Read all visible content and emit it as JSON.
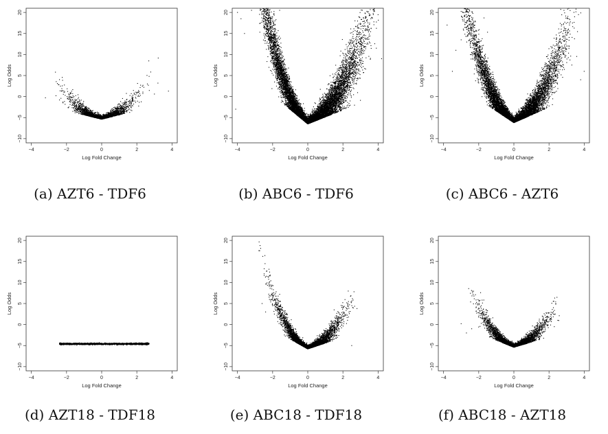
{
  "chart_data": [
    {
      "type": "scatter",
      "caption": "(a) AZT6 - TDF6",
      "xlabel": "Log Fold Change",
      "ylabel": "Log Odds",
      "xlim": [
        -4.3,
        4.3
      ],
      "ylim": [
        -11,
        21
      ],
      "xticks": [
        -4,
        -2,
        0,
        2,
        4
      ],
      "yticks": [
        -10,
        -5,
        0,
        5,
        10,
        15,
        20
      ],
      "grid": false,
      "legend": "none",
      "point_color": "#000000",
      "shape": {
        "base": -5.4,
        "slope": 1.85,
        "spread_x": 0.85,
        "max_x": 3.8,
        "scatter_y": 0.9,
        "n": 2600,
        "outliers": [
          [
            -3.2,
            -0.3
          ],
          [
            -2.6,
            0.2
          ],
          [
            -2.4,
            -0.8
          ],
          [
            2.6,
            3.0
          ],
          [
            2.7,
            4.8
          ],
          [
            3.2,
            3.2
          ],
          [
            3.8,
            1.3
          ],
          [
            2.4,
            2.2
          ],
          [
            -2.2,
            -1.5
          ],
          [
            3.0,
            0.6
          ]
        ]
      }
    },
    {
      "type": "scatter",
      "caption": "(b) ABC6 - TDF6",
      "xlabel": "Log Fold Change",
      "ylabel": "Log Odds",
      "xlim": [
        -4.3,
        4.3
      ],
      "ylim": [
        -11,
        21
      ],
      "xticks": [
        -4,
        -2,
        0,
        2,
        4
      ],
      "yticks": [
        -10,
        -5,
        0,
        5,
        10,
        15,
        20
      ],
      "grid": false,
      "legend": "none",
      "point_color": "#000000",
      "shape": {
        "base": -6.5,
        "slope_left": 6.2,
        "slope_right": 3.0,
        "spread_x": 1.5,
        "max_x": 4.3,
        "scatter_y": 2.0,
        "n": 12000,
        "outliers": [
          [
            -4.0,
            20.0
          ],
          [
            -3.8,
            18.5
          ],
          [
            -3.2,
            20.5
          ],
          [
            -2.7,
            20.8
          ],
          [
            -1.6,
            20.5
          ],
          [
            -4.1,
            -3.0
          ],
          [
            3.9,
            11.5
          ],
          [
            4.2,
            9.0
          ],
          [
            3.5,
            13.0
          ],
          [
            -3.6,
            15.0
          ]
        ]
      }
    },
    {
      "type": "scatter",
      "caption": "(c) ABC6 - AZT6",
      "xlabel": "Log Fold Change",
      "ylabel": "Log Odds",
      "xlim": [
        -4.3,
        4.3
      ],
      "ylim": [
        -11,
        21
      ],
      "xticks": [
        -4,
        -2,
        0,
        2,
        4
      ],
      "yticks": [
        -10,
        -5,
        0,
        5,
        10,
        15,
        20
      ],
      "grid": false,
      "legend": "none",
      "point_color": "#000000",
      "shape": {
        "base": -6.2,
        "slope_left": 5.0,
        "slope_right": 3.3,
        "spread_x": 1.3,
        "max_x": 4.1,
        "scatter_y": 1.8,
        "n": 9000,
        "outliers": [
          [
            -3.8,
            17.0
          ],
          [
            -1.7,
            18.7
          ],
          [
            -3.3,
            11.0
          ],
          [
            3.3,
            7.5
          ],
          [
            2.6,
            11.0
          ],
          [
            -3.0,
            13.5
          ],
          [
            -1.5,
            15.3
          ],
          [
            4.0,
            6.0
          ],
          [
            -3.5,
            6.0
          ],
          [
            3.8,
            4.0
          ]
        ]
      }
    },
    {
      "type": "scatter",
      "caption": "(d) AZT18 - TDF18",
      "xlabel": "Log Fold Change",
      "ylabel": "Log Odds",
      "xlim": [
        -4.3,
        4.3
      ],
      "ylim": [
        -11,
        21
      ],
      "xticks": [
        -4,
        -2,
        0,
        2,
        4
      ],
      "yticks": [
        -10,
        -5,
        0,
        5,
        10,
        15,
        20
      ],
      "grid": false,
      "legend": "none",
      "point_color": "#000000",
      "shape": {
        "flat": -4.6,
        "min_x": -2.4,
        "max_x": 2.7,
        "scatter_y": 0.1,
        "n": 1800,
        "outliers": []
      }
    },
    {
      "type": "scatter",
      "caption": "(e) ABC18 - TDF18",
      "xlabel": "Log Fold Change",
      "ylabel": "Log Odds",
      "xlim": [
        -4.3,
        4.3
      ],
      "ylim": [
        -11,
        21
      ],
      "xticks": [
        -4,
        -2,
        0,
        2,
        4
      ],
      "yticks": [
        -10,
        -5,
        0,
        5,
        10,
        15,
        20
      ],
      "grid": false,
      "legend": "none",
      "point_color": "#000000",
      "shape": {
        "base": -5.8,
        "slope_left": 4.2,
        "slope_right": 2.5,
        "spread_x": 0.9,
        "max_x": 2.8,
        "scatter_y": 1.0,
        "n": 4500,
        "outliers": [
          [
            -2.6,
            5.0
          ],
          [
            -2.2,
            6.5
          ],
          [
            -1.8,
            7.8
          ],
          [
            -1.6,
            7.2
          ],
          [
            -2.0,
            4.5
          ],
          [
            2.8,
            3.8
          ],
          [
            2.5,
            -5.0
          ],
          [
            -2.4,
            3.0
          ],
          [
            1.5,
            3.5
          ],
          [
            -1.9,
            2.5
          ]
        ]
      }
    },
    {
      "type": "scatter",
      "caption": "(f) ABC18 - AZT18",
      "xlabel": "Log Fold Change",
      "ylabel": "Log Odds",
      "xlim": [
        -4.3,
        4.3
      ],
      "ylim": [
        -11,
        21
      ],
      "xticks": [
        -4,
        -2,
        0,
        2,
        4
      ],
      "yticks": [
        -10,
        -5,
        0,
        5,
        10,
        15,
        20
      ],
      "grid": false,
      "legend": "none",
      "point_color": "#000000",
      "shape": {
        "base": -5.4,
        "slope_left": 3.0,
        "slope_right": 2.2,
        "spread_x": 0.85,
        "max_x": 2.6,
        "scatter_y": 0.9,
        "n": 3800,
        "outliers": [
          [
            -3.0,
            0.2
          ],
          [
            -1.9,
            4.2
          ],
          [
            -1.5,
            3.3
          ],
          [
            -2.4,
            -1.0
          ],
          [
            2.5,
            1.0
          ],
          [
            -2.0,
            1.8
          ],
          [
            1.8,
            0.3
          ],
          [
            -2.7,
            -2.0
          ],
          [
            -1.2,
            1.6
          ],
          [
            2.3,
            -0.5
          ]
        ]
      }
    }
  ]
}
